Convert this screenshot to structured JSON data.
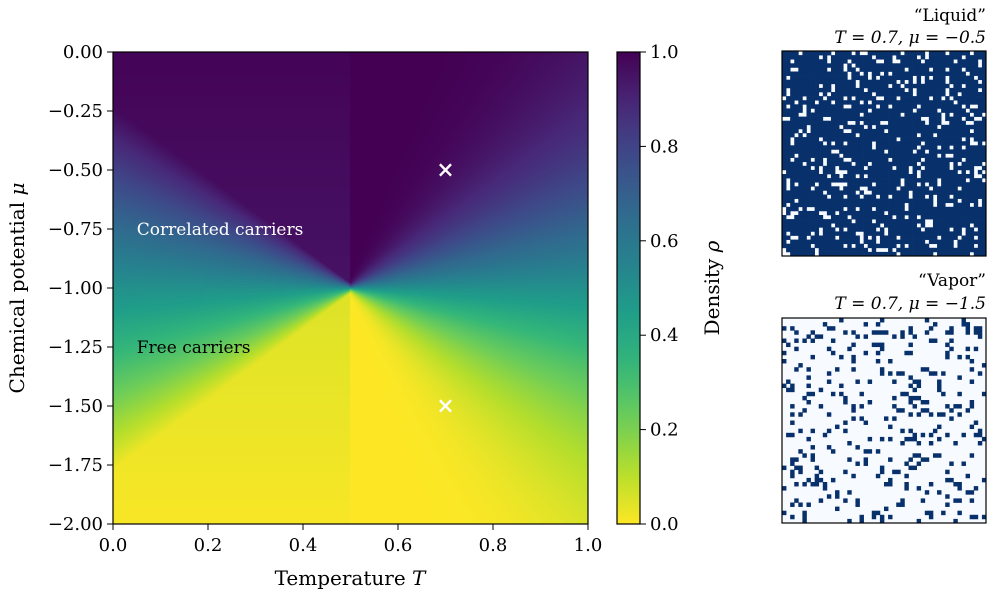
{
  "chart_data": [
    {
      "type": "heatmap",
      "title": "",
      "xlabel": "Temperature T",
      "xlabel_plain": "Temperature ",
      "xlabel_var": "T",
      "ylabel": "Chemical potential μ",
      "ylabel_plain": "Chemical potential ",
      "ylabel_var": "μ",
      "xlim": [
        0.0,
        1.0
      ],
      "ylim": [
        -2.0,
        0.0
      ],
      "xticks": [
        "0.0",
        "0.2",
        "0.4",
        "0.6",
        "0.8",
        "1.0"
      ],
      "xtick_values": [
        0.0,
        0.2,
        0.4,
        0.6,
        0.8,
        1.0
      ],
      "yticks": [
        "0.00",
        "−0.25",
        "−0.50",
        "−0.75",
        "−1.00",
        "−1.25",
        "−1.50",
        "−1.75",
        "−2.00"
      ],
      "ytick_values": [
        0.0,
        -0.25,
        -0.5,
        -0.75,
        -1.0,
        -1.25,
        -1.5,
        -1.75,
        -2.0
      ],
      "colormap": "viridis_r",
      "phase_boundary": {
        "mu": -1.0,
        "T_end": 0.5
      },
      "annotations": [
        {
          "text": "Correlated carriers",
          "T": 0.05,
          "mu": -0.75,
          "color": "#ffffff"
        },
        {
          "text": "Free carriers",
          "T": 0.05,
          "mu": -1.25,
          "color": "#000000"
        }
      ],
      "markers": [
        {
          "T": 0.7,
          "mu": -0.5,
          "symbol": "×",
          "color": "#ffffff"
        },
        {
          "T": 0.7,
          "mu": -1.5,
          "symbol": "×",
          "color": "#ffffff"
        }
      ],
      "colorbar": {
        "label": "Density ρ",
        "label_plain": "Density ",
        "label_var": "ρ",
        "range": [
          0.0,
          1.0
        ],
        "ticks": [
          "0.0",
          "0.2",
          "0.4",
          "0.6",
          "0.8",
          "1.0"
        ],
        "tick_values": [
          0.0,
          0.2,
          0.4,
          0.6,
          0.8,
          1.0
        ]
      }
    },
    {
      "type": "heatmap",
      "title_quote": "“Liquid”",
      "title_params": "T = 0.7, μ = −0.5",
      "T": 0.7,
      "mu": -0.5,
      "grid_size": 50,
      "occupied_fraction": 0.85,
      "occupied_color": "#08306b",
      "empty_color": "#f7fbff"
    },
    {
      "type": "heatmap",
      "title_quote": "“Vapor”",
      "title_params": "T = 0.7, μ = −1.5",
      "T": 0.7,
      "mu": -1.5,
      "grid_size": 50,
      "occupied_fraction": 0.15,
      "occupied_color": "#08306b",
      "empty_color": "#f7fbff"
    }
  ]
}
